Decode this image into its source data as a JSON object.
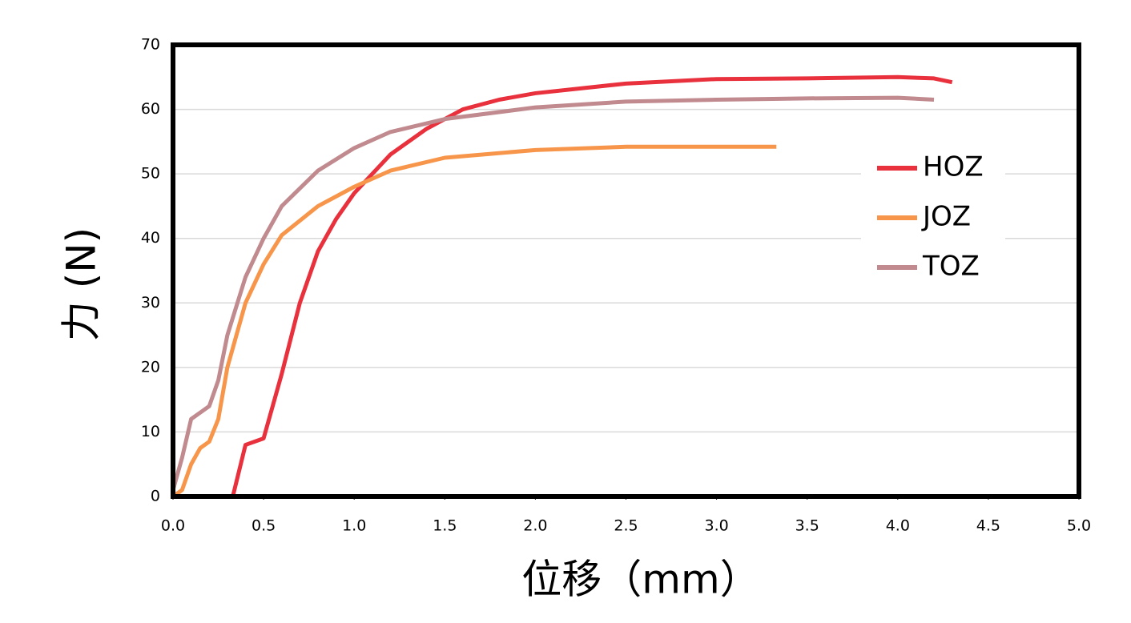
{
  "chart_data": {
    "type": "line",
    "x_label": "位移（mm）",
    "y_label": "力 (N)",
    "xlim": [
      0,
      5
    ],
    "ylim": [
      0,
      70
    ],
    "xticks": [
      {
        "value": 0,
        "label": "0.0"
      },
      0.5,
      {
        "value": 1,
        "label": "1.0"
      },
      1.5,
      {
        "value": 2,
        "label": "2.0"
      },
      2.5,
      {
        "value": 3,
        "label": "3.0"
      },
      3.5,
      {
        "value": 4,
        "label": "4.0"
      },
      4.5,
      {
        "value": 5,
        "label": "5.0"
      }
    ],
    "yticks": [
      0,
      10,
      20,
      30,
      40,
      50,
      60,
      70
    ],
    "grid": true,
    "legend": "right",
    "series": [
      {
        "name": "HOZ",
        "color": "#e8313d",
        "x": [
          0.33,
          0.4,
          0.5,
          0.6,
          0.7,
          0.8,
          0.9,
          1.0,
          1.2,
          1.4,
          1.6,
          1.8,
          2.0,
          2.5,
          3.0,
          3.5,
          4.0,
          4.2,
          4.3
        ],
        "values": [
          0,
          8,
          9,
          19,
          30,
          38,
          43,
          47,
          53,
          57,
          60,
          61.5,
          62.5,
          64,
          64.7,
          64.8,
          65,
          64.8,
          64.2
        ]
      },
      {
        "name": "JOZ",
        "color": "#f7964a",
        "x": [
          0,
          0.05,
          0.1,
          0.15,
          0.2,
          0.25,
          0.3,
          0.4,
          0.5,
          0.6,
          0.8,
          1.0,
          1.2,
          1.5,
          2.0,
          2.5,
          3.0,
          3.33
        ],
        "values": [
          0,
          1,
          5,
          7.5,
          8.5,
          12,
          20,
          30,
          36,
          40.5,
          45,
          48,
          50.5,
          52.5,
          53.7,
          54.2,
          54.2,
          54.2
        ]
      },
      {
        "name": "TOZ",
        "color": "#c08a8e",
        "x": [
          0,
          0.05,
          0.1,
          0.15,
          0.2,
          0.25,
          0.3,
          0.4,
          0.5,
          0.6,
          0.8,
          1.0,
          1.2,
          1.5,
          2.0,
          2.5,
          3.0,
          3.5,
          4.0,
          4.2
        ],
        "values": [
          1,
          6,
          12,
          13,
          14,
          18,
          25,
          34,
          40,
          45,
          50.5,
          54,
          56.5,
          58.5,
          60.3,
          61.2,
          61.5,
          61.7,
          61.8,
          61.5
        ]
      }
    ]
  }
}
